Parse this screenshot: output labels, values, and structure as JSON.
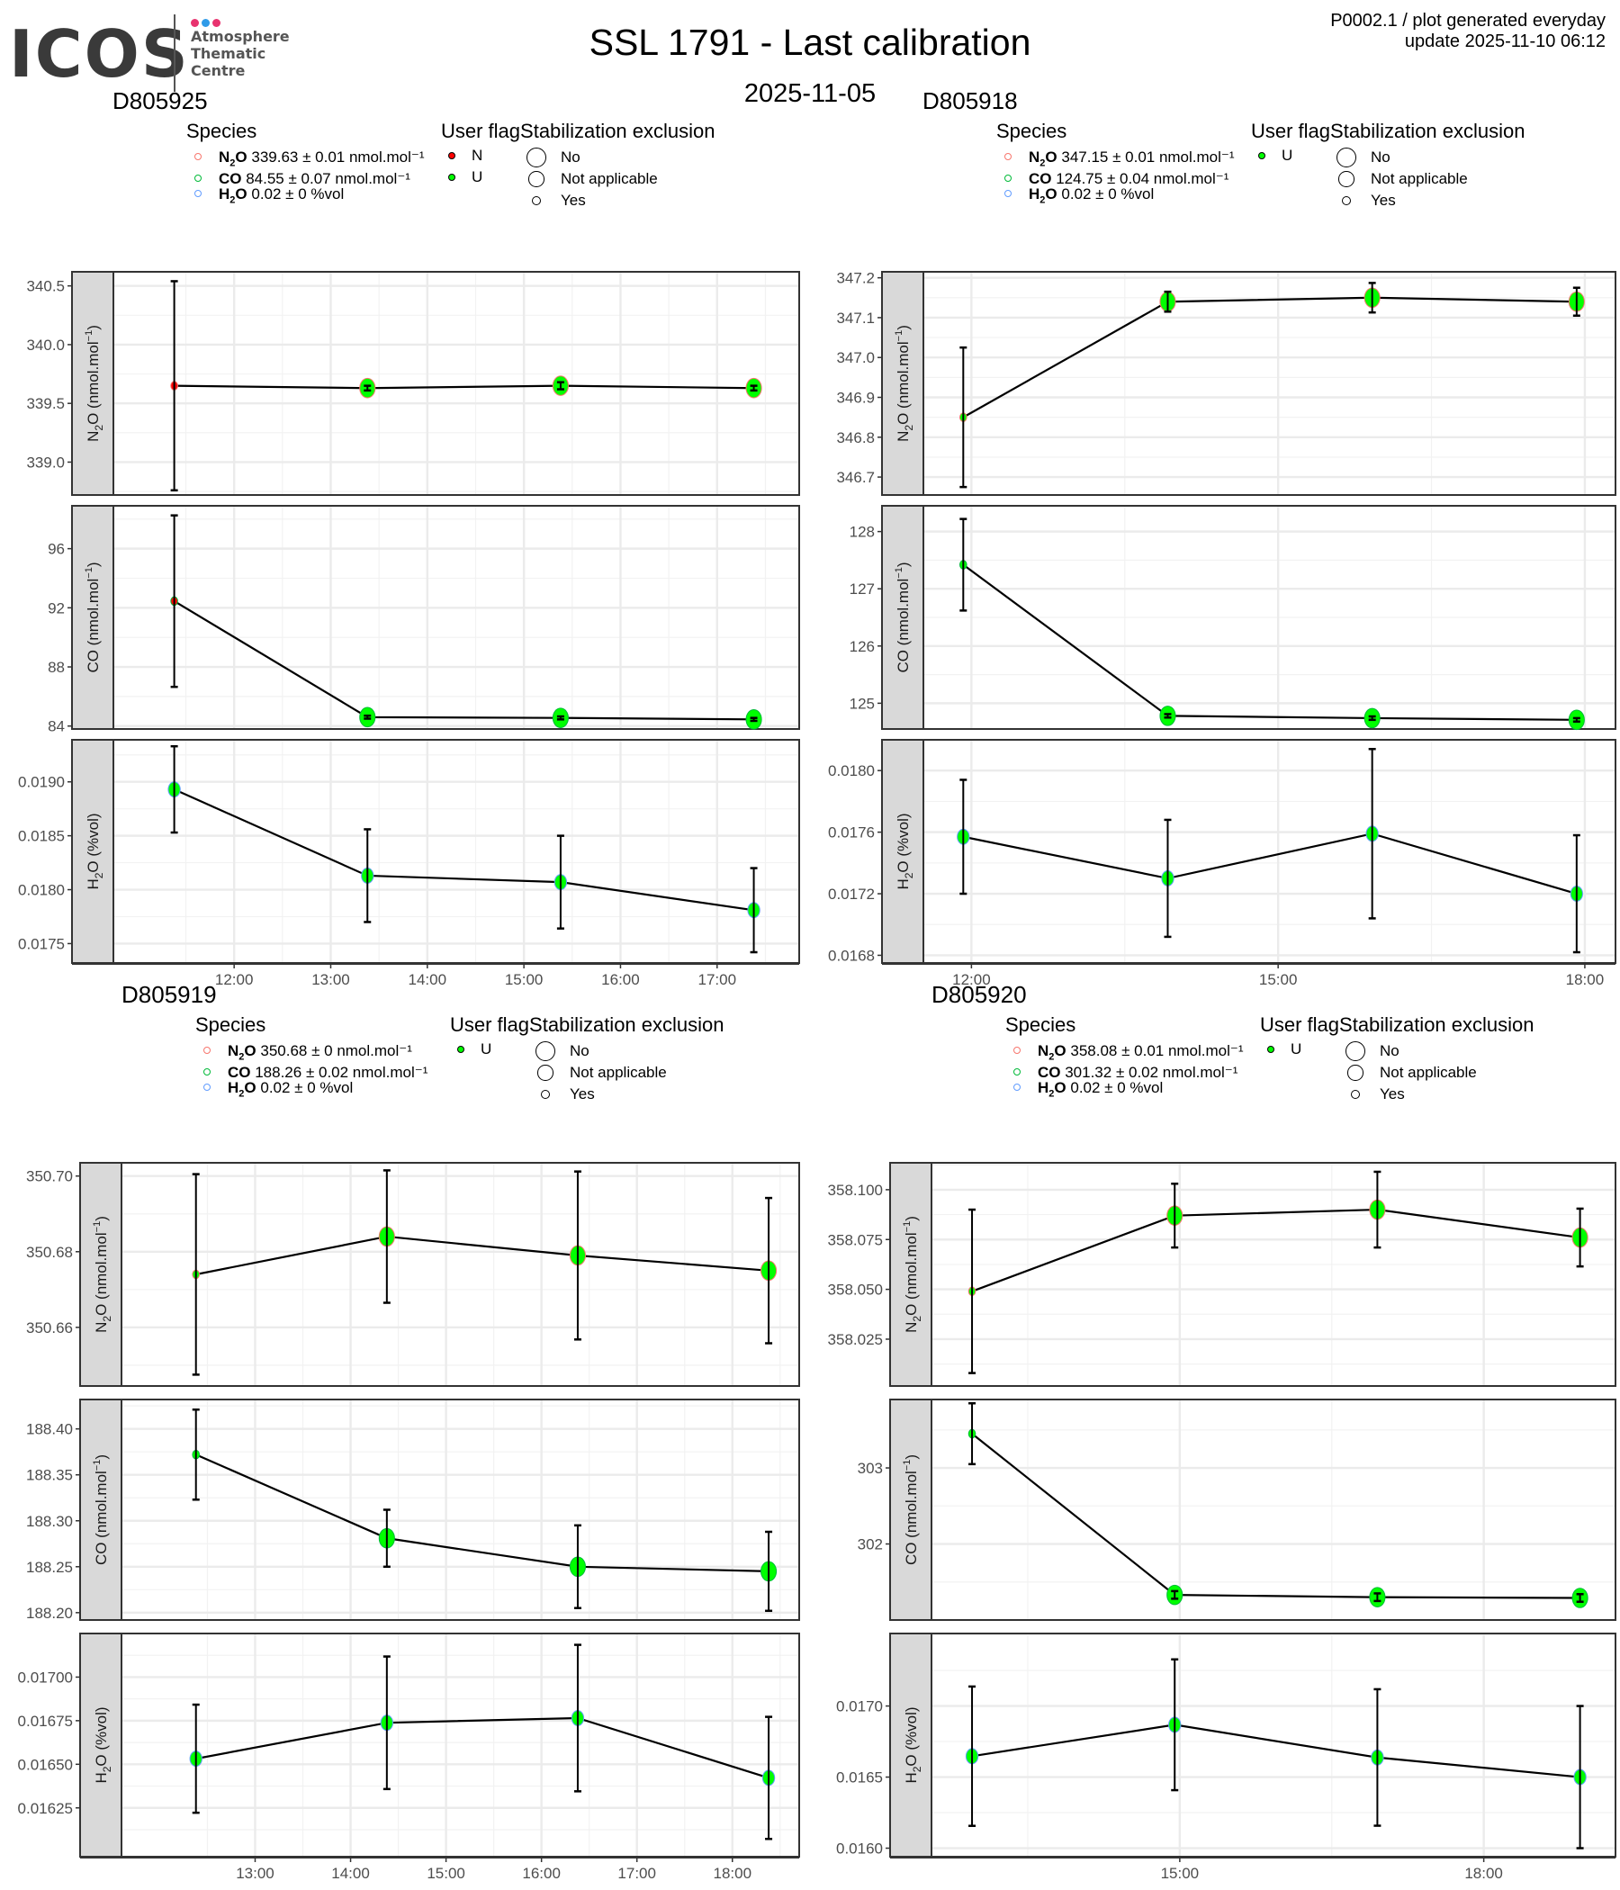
{
  "header": {
    "logo": {
      "text": "ICOS",
      "sub_lines": [
        "Atmosphere",
        "Thematic",
        "Centre"
      ],
      "dot_colors": [
        "#e8336f",
        "#2f9be8",
        "#e8336f"
      ]
    },
    "title": "SSL 1791 - Last calibration",
    "subtitle": "2025-11-05",
    "meta_line1": "P0002.1 / plot generated everyday",
    "meta_line2": "update  2025-11-10 06:12"
  },
  "legend_labels": {
    "species": "Species",
    "user_flag": "User flag",
    "stab_exclusion": "Stabilization exclusion",
    "stab_items": [
      "No",
      "Not applicable",
      "Yes"
    ]
  },
  "colors": {
    "n2o": "#f8766d",
    "co": "#00ba38",
    "h2o": "#619cff",
    "flag_U": "#00ff00",
    "flag_N": "#ff0000",
    "strip_bg": "#d9d9d9",
    "grid": "#ebebeb"
  },
  "chart_data": [
    {
      "type": "line",
      "title": "D805925",
      "species_legend": [
        {
          "name": "N2O",
          "text": "339.63 ± 0.01 nmol.mol⁻¹"
        },
        {
          "name": "CO",
          "text": "84.55 ± 0.07 nmol.mol⁻¹"
        },
        {
          "name": "H2O",
          "text": "0.02 ± 0 %vol"
        }
      ],
      "user_flags": [
        "N",
        "U"
      ],
      "x_ticks": [
        "12:00",
        "13:00",
        "14:00",
        "15:00",
        "16:00",
        "17:00"
      ],
      "x_tick_hours": [
        12,
        13,
        14,
        15,
        16,
        17
      ],
      "xlim_hours": [
        10.75,
        17.85
      ],
      "facets": [
        {
          "ylabel": "N2O (nmol.mol-1)",
          "ylim": [
            338.72,
            340.62
          ],
          "y_ticks": [
            339.0,
            339.5,
            340.0,
            340.5
          ],
          "y_tick_labels": [
            "339.0",
            "339.5",
            "340.0",
            "340.5"
          ],
          "points": [
            {
              "x": 11.38,
              "y": 339.65,
              "err": 0.89,
              "flag": "N",
              "stab": "Yes"
            },
            {
              "x": 13.38,
              "y": 339.63,
              "err": 0.02,
              "flag": "U",
              "stab": "No"
            },
            {
              "x": 15.38,
              "y": 339.65,
              "err": 0.03,
              "flag": "U",
              "stab": "No"
            },
            {
              "x": 17.38,
              "y": 339.63,
              "err": 0.02,
              "flag": "U",
              "stab": "No"
            }
          ]
        },
        {
          "ylabel": "CO (nmol.mol-1)",
          "ylim": [
            83.8,
            98.9
          ],
          "y_ticks": [
            84,
            88,
            92,
            96
          ],
          "y_tick_labels": [
            "84",
            "88",
            "92",
            "96"
          ],
          "points": [
            {
              "x": 11.38,
              "y": 92.45,
              "err": 5.8,
              "flag": "N",
              "stab": "Yes"
            },
            {
              "x": 13.38,
              "y": 84.6,
              "err": 0.1,
              "flag": "U",
              "stab": "No"
            },
            {
              "x": 15.38,
              "y": 84.55,
              "err": 0.1,
              "flag": "U",
              "stab": "No"
            },
            {
              "x": 17.38,
              "y": 84.45,
              "err": 0.1,
              "flag": "U",
              "stab": "No"
            }
          ]
        },
        {
          "ylabel": "H2O (%vol)",
          "ylim": [
            0.01732,
            0.01939
          ],
          "y_ticks": [
            0.0175,
            0.018,
            0.0185,
            0.019
          ],
          "y_tick_labels": [
            "0.0175",
            "0.0180",
            "0.0185",
            "0.0190"
          ],
          "points": [
            {
              "x": 11.38,
              "y": 0.01893,
              "err": 0.0004,
              "flag": "U",
              "stab": "Not applicable"
            },
            {
              "x": 13.38,
              "y": 0.01813,
              "err": 0.00043,
              "flag": "U",
              "stab": "Not applicable"
            },
            {
              "x": 15.38,
              "y": 0.01807,
              "err": 0.00043,
              "flag": "U",
              "stab": "Not applicable"
            },
            {
              "x": 17.38,
              "y": 0.01781,
              "err": 0.00039,
              "flag": "U",
              "stab": "Not applicable"
            }
          ]
        }
      ]
    },
    {
      "type": "line",
      "title": "D805918",
      "species_legend": [
        {
          "name": "N2O",
          "text": "347.15 ± 0.01 nmol.mol⁻¹"
        },
        {
          "name": "CO",
          "text": "124.75 ± 0.04 nmol.mol⁻¹"
        },
        {
          "name": "H2O",
          "text": "0.02 ± 0 %vol"
        }
      ],
      "user_flags": [
        "U"
      ],
      "x_ticks": [
        "12:00",
        "15:00",
        "18:00"
      ],
      "x_tick_hours": [
        12,
        15,
        18
      ],
      "xlim_hours": [
        11.53,
        18.3
      ],
      "facets": [
        {
          "ylabel": "N2O (nmol.mol-1)",
          "ylim": [
            346.655,
            347.215
          ],
          "y_ticks": [
            346.7,
            346.8,
            346.9,
            347.0,
            347.1,
            347.2
          ],
          "y_tick_labels": [
            "346.7",
            "346.8",
            "346.9",
            "347.0",
            "347.1",
            "347.2"
          ],
          "points": [
            {
              "x": 11.92,
              "y": 346.85,
              "err": 0.175,
              "flag": "U",
              "stab": "Yes"
            },
            {
              "x": 13.92,
              "y": 347.14,
              "err": 0.025,
              "flag": "U",
              "stab": "No"
            },
            {
              "x": 15.92,
              "y": 347.15,
              "err": 0.037,
              "flag": "U",
              "stab": "No"
            },
            {
              "x": 17.92,
              "y": 347.14,
              "err": 0.035,
              "flag": "U",
              "stab": "No"
            }
          ]
        },
        {
          "ylabel": "CO (nmol.mol-1)",
          "ylim": [
            124.55,
            128.45
          ],
          "y_ticks": [
            125,
            126,
            127,
            128
          ],
          "y_tick_labels": [
            "125",
            "126",
            "127",
            "128"
          ],
          "points": [
            {
              "x": 11.92,
              "y": 127.42,
              "err": 0.8,
              "flag": "U",
              "stab": "Yes"
            },
            {
              "x": 13.92,
              "y": 124.78,
              "err": 0.03,
              "flag": "U",
              "stab": "No"
            },
            {
              "x": 15.92,
              "y": 124.74,
              "err": 0.03,
              "flag": "U",
              "stab": "No"
            },
            {
              "x": 17.92,
              "y": 124.71,
              "err": 0.03,
              "flag": "U",
              "stab": "No"
            }
          ]
        },
        {
          "ylabel": "H2O (%vol)",
          "ylim": [
            0.01675,
            0.0182
          ],
          "y_ticks": [
            0.0168,
            0.0172,
            0.0176,
            0.018
          ],
          "y_tick_labels": [
            "0.0168",
            "0.0172",
            "0.0176",
            "0.0180"
          ],
          "points": [
            {
              "x": 11.92,
              "y": 0.01757,
              "err": 0.00037,
              "flag": "U",
              "stab": "Not applicable"
            },
            {
              "x": 13.92,
              "y": 0.0173,
              "err": 0.00038,
              "flag": "U",
              "stab": "Not applicable"
            },
            {
              "x": 15.92,
              "y": 0.01759,
              "err": 0.00055,
              "flag": "U",
              "stab": "Not applicable"
            },
            {
              "x": 17.92,
              "y": 0.0172,
              "err": 0.00038,
              "flag": "U",
              "stab": "Not applicable"
            }
          ]
        }
      ]
    },
    {
      "type": "line",
      "title": "D805919",
      "species_legend": [
        {
          "name": "N2O",
          "text": "350.68 ± 0 nmol.mol⁻¹"
        },
        {
          "name": "CO",
          "text": "188.26 ± 0.02 nmol.mol⁻¹"
        },
        {
          "name": "H2O",
          "text": "0.02 ± 0 %vol"
        }
      ],
      "user_flags": [
        "U"
      ],
      "x_ticks": [
        "13:00",
        "14:00",
        "15:00",
        "16:00",
        "17:00",
        "18:00"
      ],
      "x_tick_hours": [
        13,
        14,
        15,
        16,
        17,
        18
      ],
      "xlim_hours": [
        11.6,
        18.7
      ],
      "facets": [
        {
          "ylabel": "N2O (nmol.mol-1)",
          "ylim": [
            350.6445,
            350.7035
          ],
          "y_ticks": [
            350.66,
            350.68,
            350.7
          ],
          "y_tick_labels": [
            "350.66",
            "350.68",
            "350.70"
          ],
          "points": [
            {
              "x": 12.38,
              "y": 350.674,
              "err": 0.0265,
              "flag": "U",
              "stab": "Yes"
            },
            {
              "x": 14.38,
              "y": 350.684,
              "err": 0.0175,
              "flag": "U",
              "stab": "No"
            },
            {
              "x": 16.38,
              "y": 350.679,
              "err": 0.0222,
              "flag": "U",
              "stab": "No"
            },
            {
              "x": 18.38,
              "y": 350.675,
              "err": 0.0192,
              "flag": "U",
              "stab": "No"
            }
          ]
        },
        {
          "ylabel": "CO (nmol.mol-1)",
          "ylim": [
            188.192,
            188.432
          ],
          "y_ticks": [
            188.2,
            188.25,
            188.3,
            188.35,
            188.4
          ],
          "y_tick_labels": [
            "188.20",
            "188.25",
            "188.30",
            "188.35",
            "188.40"
          ],
          "points": [
            {
              "x": 12.38,
              "y": 188.372,
              "err": 0.049,
              "flag": "U",
              "stab": "Yes"
            },
            {
              "x": 14.38,
              "y": 188.281,
              "err": 0.031,
              "flag": "U",
              "stab": "No"
            },
            {
              "x": 16.38,
              "y": 188.25,
              "err": 0.045,
              "flag": "U",
              "stab": "No"
            },
            {
              "x": 18.38,
              "y": 188.245,
              "err": 0.043,
              "flag": "U",
              "stab": "No"
            }
          ]
        },
        {
          "ylabel": "H2O (%vol)",
          "ylim": [
            0.01597,
            0.01725
          ],
          "y_ticks": [
            0.01625,
            0.0165,
            0.01675,
            0.017
          ],
          "y_tick_labels": [
            "0.01625",
            "0.01650",
            "0.01675",
            "0.01700"
          ],
          "points": [
            {
              "x": 12.38,
              "y": 0.016532,
              "err": 0.00031,
              "flag": "U",
              "stab": "Not applicable"
            },
            {
              "x": 14.38,
              "y": 0.016738,
              "err": 0.00038,
              "flag": "U",
              "stab": "Not applicable"
            },
            {
              "x": 16.38,
              "y": 0.016765,
              "err": 0.00042,
              "flag": "U",
              "stab": "Not applicable"
            },
            {
              "x": 18.38,
              "y": 0.016422,
              "err": 0.00035,
              "flag": "U",
              "stab": "Not applicable"
            }
          ]
        }
      ]
    },
    {
      "type": "line",
      "title": "D805920",
      "species_legend": [
        {
          "name": "N2O",
          "text": "358.08 ± 0.01 nmol.mol⁻¹"
        },
        {
          "name": "CO",
          "text": "301.32 ± 0.02 nmol.mol⁻¹"
        },
        {
          "name": "H2O",
          "text": "0.02 ± 0 %vol"
        }
      ],
      "user_flags": [
        "U"
      ],
      "x_ticks": [
        "15:00",
        "18:00"
      ],
      "x_tick_hours": [
        15,
        18
      ],
      "xlim_hours": [
        12.55,
        19.3
      ],
      "facets": [
        {
          "ylabel": "N2O (nmol.mol-1)",
          "ylim": [
            358.0015,
            358.1135
          ],
          "y_ticks": [
            358.025,
            358.05,
            358.075,
            358.1
          ],
          "y_tick_labels": [
            "358.025",
            "358.050",
            "358.075",
            "358.100"
          ],
          "points": [
            {
              "x": 12.95,
              "y": 358.049,
              "err": 0.041,
              "flag": "U",
              "stab": "Yes"
            },
            {
              "x": 14.95,
              "y": 358.087,
              "err": 0.016,
              "flag": "U",
              "stab": "No"
            },
            {
              "x": 16.95,
              "y": 358.09,
              "err": 0.019,
              "flag": "U",
              "stab": "No"
            },
            {
              "x": 18.95,
              "y": 358.076,
              "err": 0.0145,
              "flag": "U",
              "stab": "No"
            }
          ]
        },
        {
          "ylabel": "CO (nmol.mol-1)",
          "ylim": [
            301.0,
            303.9
          ],
          "y_ticks": [
            302,
            303
          ],
          "y_tick_labels": [
            "302",
            "303"
          ],
          "points": [
            {
              "x": 12.95,
              "y": 303.45,
              "err": 0.4,
              "flag": "U",
              "stab": "Yes"
            },
            {
              "x": 14.95,
              "y": 301.33,
              "err": 0.05,
              "flag": "U",
              "stab": "No"
            },
            {
              "x": 16.95,
              "y": 301.3,
              "err": 0.05,
              "flag": "U",
              "stab": "No"
            },
            {
              "x": 18.95,
              "y": 301.29,
              "err": 0.05,
              "flag": "U",
              "stab": "No"
            }
          ]
        },
        {
          "ylabel": "H2O (%vol)",
          "ylim": [
            0.01594,
            0.01751
          ],
          "y_ticks": [
            0.016,
            0.0165,
            0.017
          ],
          "y_tick_labels": [
            "0.0160",
            "0.0165",
            "0.0170"
          ],
          "points": [
            {
              "x": 12.95,
              "y": 0.016647,
              "err": 0.00049,
              "flag": "U",
              "stab": "Not applicable"
            },
            {
              "x": 14.95,
              "y": 0.016868,
              "err": 0.00046,
              "flag": "U",
              "stab": "Not applicable"
            },
            {
              "x": 16.95,
              "y": 0.016638,
              "err": 0.00048,
              "flag": "U",
              "stab": "Not applicable"
            },
            {
              "x": 18.95,
              "y": 0.0165,
              "err": 0.0005,
              "flag": "U",
              "stab": "Not applicable"
            }
          ]
        }
      ]
    }
  ]
}
